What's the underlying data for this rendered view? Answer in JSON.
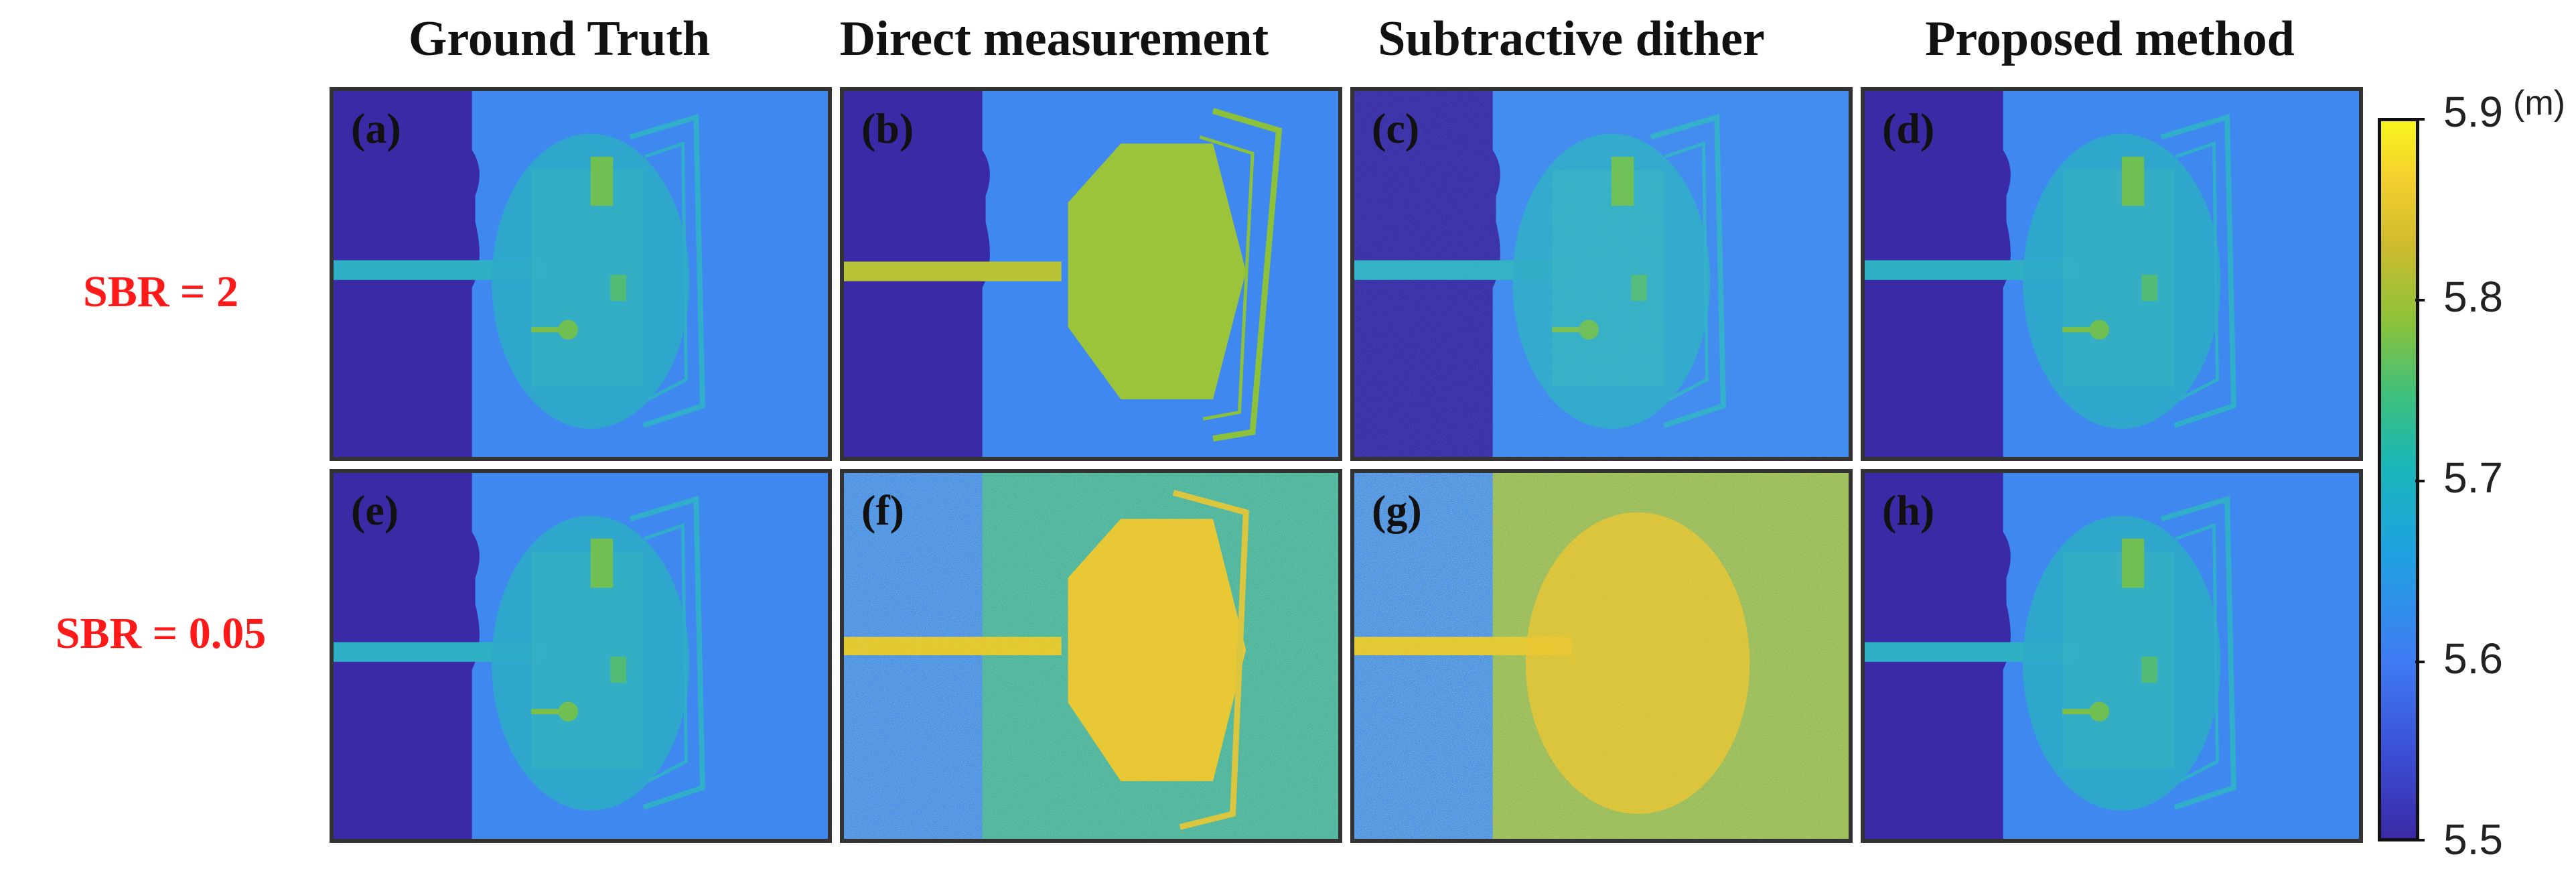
{
  "columns": [
    "Ground Truth",
    "Direct measurement",
    "Subtractive dither",
    "Proposed method"
  ],
  "rows": [
    "SBR = 2",
    "SBR = 0.05"
  ],
  "panels": [
    {
      "letter": "(a)",
      "row": "SBR = 2",
      "column": "Ground Truth"
    },
    {
      "letter": "(b)",
      "row": "SBR = 2",
      "column": "Direct measurement"
    },
    {
      "letter": "(c)",
      "row": "SBR = 2",
      "column": "Subtractive dither"
    },
    {
      "letter": "(d)",
      "row": "SBR = 2",
      "column": "Proposed method"
    },
    {
      "letter": "(e)",
      "row": "SBR = 0.05",
      "column": "Ground Truth"
    },
    {
      "letter": "(f)",
      "row": "SBR = 0.05",
      "column": "Direct measurement"
    },
    {
      "letter": "(g)",
      "row": "SBR = 0.05",
      "column": "Subtractive dither"
    },
    {
      "letter": "(h)",
      "row": "SBR = 0.05",
      "column": "Proposed method"
    }
  ],
  "colorbar": {
    "unit": "(m)",
    "min": 5.5,
    "max": 5.9,
    "ticks": [
      "5.9",
      "5.8",
      "5.7",
      "5.6",
      "5.5"
    ],
    "colors": {
      "low": "#3a2aa6",
      "mid": "#19b6b8",
      "high": "#f8f51e"
    }
  },
  "scene_colors": {
    "background_wall": "#3a2aa6",
    "floor": "#3f88f0",
    "object": "#2fb0c4",
    "object_highlight": "#8cc23a",
    "noise_yellow": "#e8c82e"
  }
}
